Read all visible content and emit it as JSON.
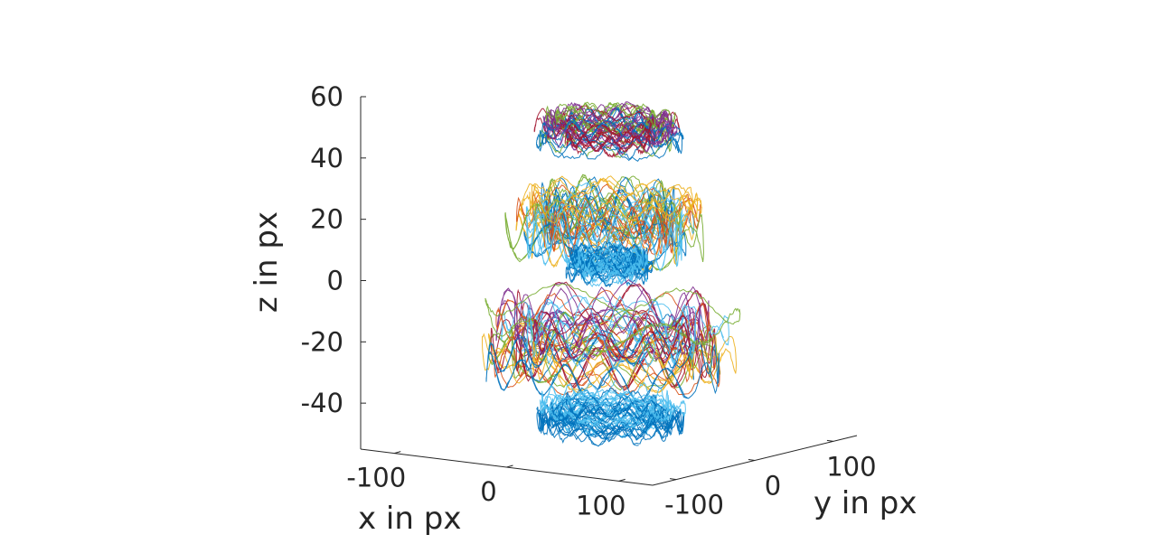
{
  "chart_data": {
    "type": "line3d",
    "title": "",
    "xlabel": "x in px",
    "ylabel": "y in px",
    "zlabel": "z in px",
    "xlim": [
      -130,
      130
    ],
    "ylim": [
      -130,
      130
    ],
    "zlim": [
      -55,
      60
    ],
    "x_ticks": [
      {
        "value": -100,
        "label": "-100"
      },
      {
        "value": 0,
        "label": "0"
      },
      {
        "value": 100,
        "label": "100"
      }
    ],
    "y_ticks": [
      {
        "value": -100,
        "label": "-100"
      },
      {
        "value": 0,
        "label": "0"
      },
      {
        "value": 100,
        "label": "100"
      }
    ],
    "z_ticks": [
      {
        "value": 60,
        "label": "60"
      },
      {
        "value": 40,
        "label": "40"
      },
      {
        "value": 20,
        "label": "20"
      },
      {
        "value": 0,
        "label": "0"
      },
      {
        "value": -20,
        "label": "-20"
      },
      {
        "value": -40,
        "label": "-40"
      }
    ],
    "grid": false,
    "legend": "none",
    "color_order": [
      "#0072BD",
      "#D95319",
      "#EDB120",
      "#7E2F8E",
      "#77AC30",
      "#4DBEEE",
      "#A2142F"
    ],
    "clusters": [
      {
        "z_center": 47,
        "radius": 55,
        "z_spread": 4,
        "colors": [
          "#7E2F8E",
          "#A2142F",
          "#77AC30",
          "#0072BD"
        ]
      },
      {
        "z_center": 18,
        "radius": 75,
        "z_spread": 9,
        "colors": [
          "#4DBEEE",
          "#EDB120",
          "#77AC30",
          "#0072BD",
          "#D95319"
        ]
      },
      {
        "z_center": 3,
        "radius": 32,
        "z_spread": 3,
        "colors": [
          "#0072BD",
          "#4DBEEE"
        ]
      },
      {
        "z_center": -23,
        "radius": 95,
        "z_spread": 9,
        "colors": [
          "#A2142F",
          "#D95319",
          "#EDB120",
          "#0072BD",
          "#7E2F8E",
          "#4DBEEE",
          "#77AC30"
        ]
      },
      {
        "z_center": -45,
        "radius": 55,
        "z_spread": 4,
        "colors": [
          "#4DBEEE",
          "#0072BD"
        ]
      }
    ]
  }
}
